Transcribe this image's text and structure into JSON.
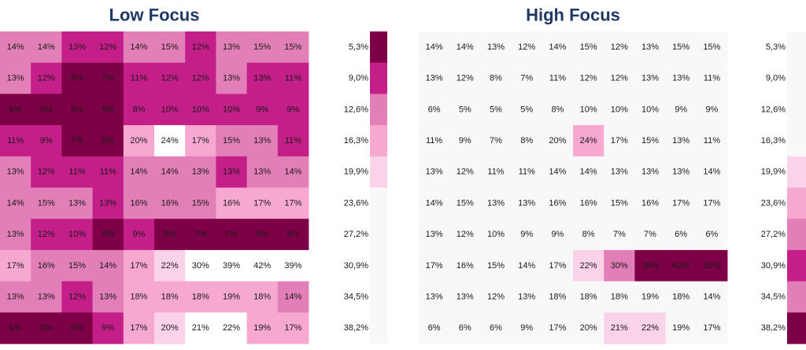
{
  "chart_data": {
    "type": "heatmap",
    "palette": [
      "#ffffff",
      "#fbd3e9",
      "#f7a8d0",
      "#e27fb8",
      "#c41e89",
      "#7d0046"
    ],
    "background": "#f8f8f8",
    "legend": {
      "labels": [
        "5,3%",
        "9,0%",
        "12,6%",
        "16,3%",
        "19,9%",
        "23,6%",
        "27,2%",
        "30,9%",
        "34,5%",
        "38,2%"
      ],
      "left_colors": [
        "#7d0046",
        "#c41e89",
        "#e27fb8",
        "#f7a8d0",
        "#fbd3e9",
        "#f8f8f8",
        "#f8f8f8",
        "#f8f8f8",
        "#f8f8f8",
        "#f8f8f8"
      ],
      "right_colors": [
        "#f8f8f8",
        "#f8f8f8",
        "#f8f8f8",
        "#f8f8f8",
        "#fbd3e9",
        "#f7a8d0",
        "#e27fb8",
        "#c41e89",
        "#e27fb8",
        "#7d0046"
      ]
    },
    "panels": [
      {
        "title": "Low Focus",
        "values": [
          [
            "14%",
            "14%",
            "13%",
            "12%",
            "14%",
            "15%",
            "12%",
            "13%",
            "15%",
            "15%"
          ],
          [
            "13%",
            "12%",
            "8%",
            "7%",
            "11%",
            "12%",
            "12%",
            "13%",
            "13%",
            "11%"
          ],
          [
            "6%",
            "5%",
            "5%",
            "5%",
            "8%",
            "10%",
            "10%",
            "10%",
            "9%",
            "9%"
          ],
          [
            "11%",
            "9%",
            "7%",
            "8%",
            "20%",
            "24%",
            "17%",
            "15%",
            "13%",
            "11%"
          ],
          [
            "13%",
            "12%",
            "11%",
            "11%",
            "14%",
            "14%",
            "13%",
            "13%",
            "13%",
            "14%"
          ],
          [
            "14%",
            "15%",
            "13%",
            "13%",
            "16%",
            "16%",
            "15%",
            "16%",
            "17%",
            "17%"
          ],
          [
            "13%",
            "12%",
            "10%",
            "9%",
            "9%",
            "8%",
            "7%",
            "7%",
            "6%",
            "6%"
          ],
          [
            "17%",
            "16%",
            "15%",
            "14%",
            "17%",
            "22%",
            "30%",
            "39%",
            "42%",
            "39%"
          ],
          [
            "13%",
            "13%",
            "12%",
            "13%",
            "18%",
            "18%",
            "18%",
            "19%",
            "18%",
            "14%"
          ],
          [
            "6%",
            "6%",
            "6%",
            "9%",
            "17%",
            "20%",
            "21%",
            "22%",
            "19%",
            "17%"
          ]
        ],
        "colors": [
          [
            "#e27fb8",
            "#e27fb8",
            "#c41e89",
            "#c41e89",
            "#e27fb8",
            "#e27fb8",
            "#c41e89",
            "#e27fb8",
            "#e27fb8",
            "#e27fb8"
          ],
          [
            "#e27fb8",
            "#c41e89",
            "#7d0046",
            "#7d0046",
            "#c41e89",
            "#c41e89",
            "#c41e89",
            "#e27fb8",
            "#c41e89",
            "#c41e89"
          ],
          [
            "#7d0046",
            "#7d0046",
            "#7d0046",
            "#7d0046",
            "#c41e89",
            "#c41e89",
            "#c41e89",
            "#c41e89",
            "#c41e89",
            "#c41e89"
          ],
          [
            "#c41e89",
            "#c41e89",
            "#7d0046",
            "#7d0046",
            "#f7a8d0",
            "#ffffff",
            "#f7a8d0",
            "#e27fb8",
            "#e27fb8",
            "#c41e89"
          ],
          [
            "#e27fb8",
            "#c41e89",
            "#c41e89",
            "#c41e89",
            "#e27fb8",
            "#e27fb8",
            "#e27fb8",
            "#c41e89",
            "#e27fb8",
            "#e27fb8"
          ],
          [
            "#e27fb8",
            "#e27fb8",
            "#e27fb8",
            "#c41e89",
            "#e27fb8",
            "#e27fb8",
            "#e27fb8",
            "#f7a8d0",
            "#f7a8d0",
            "#f7a8d0"
          ],
          [
            "#e27fb8",
            "#c41e89",
            "#c41e89",
            "#7d0046",
            "#c41e89",
            "#7d0046",
            "#7d0046",
            "#7d0046",
            "#7d0046",
            "#7d0046"
          ],
          [
            "#f7a8d0",
            "#e27fb8",
            "#e27fb8",
            "#e27fb8",
            "#f7a8d0",
            "#fbd3e9",
            "#ffffff",
            "#ffffff",
            "#ffffff",
            "#ffffff"
          ],
          [
            "#e27fb8",
            "#e27fb8",
            "#c41e89",
            "#e27fb8",
            "#f7a8d0",
            "#f7a8d0",
            "#f7a8d0",
            "#f7a8d0",
            "#f7a8d0",
            "#e27fb8"
          ],
          [
            "#7d0046",
            "#7d0046",
            "#7d0046",
            "#c41e89",
            "#f7a8d0",
            "#fbd3e9",
            "#ffffff",
            "#ffffff",
            "#f7a8d0",
            "#f7a8d0"
          ]
        ]
      },
      {
        "title": "High Focus",
        "values": [
          [
            "14%",
            "14%",
            "13%",
            "12%",
            "14%",
            "15%",
            "12%",
            "13%",
            "15%",
            "15%"
          ],
          [
            "13%",
            "12%",
            "8%",
            "7%",
            "11%",
            "12%",
            "12%",
            "13%",
            "13%",
            "11%"
          ],
          [
            "6%",
            "5%",
            "5%",
            "5%",
            "8%",
            "10%",
            "10%",
            "10%",
            "9%",
            "9%"
          ],
          [
            "11%",
            "9%",
            "7%",
            "8%",
            "20%",
            "24%",
            "17%",
            "15%",
            "13%",
            "11%"
          ],
          [
            "13%",
            "12%",
            "11%",
            "11%",
            "14%",
            "14%",
            "13%",
            "13%",
            "13%",
            "14%"
          ],
          [
            "14%",
            "15%",
            "13%",
            "13%",
            "16%",
            "16%",
            "15%",
            "16%",
            "17%",
            "17%"
          ],
          [
            "13%",
            "12%",
            "10%",
            "9%",
            "9%",
            "8%",
            "7%",
            "7%",
            "6%",
            "6%"
          ],
          [
            "17%",
            "16%",
            "15%",
            "14%",
            "17%",
            "22%",
            "30%",
            "39%",
            "42%",
            "39%"
          ],
          [
            "13%",
            "13%",
            "12%",
            "13%",
            "18%",
            "18%",
            "18%",
            "19%",
            "18%",
            "14%"
          ],
          [
            "6%",
            "6%",
            "6%",
            "9%",
            "17%",
            "20%",
            "21%",
            "22%",
            "19%",
            "17%"
          ]
        ],
        "colors": [
          [
            "#f8f8f8",
            "#f8f8f8",
            "#f8f8f8",
            "#f8f8f8",
            "#f8f8f8",
            "#f8f8f8",
            "#f8f8f8",
            "#f8f8f8",
            "#f8f8f8",
            "#f8f8f8"
          ],
          [
            "#f8f8f8",
            "#f8f8f8",
            "#f8f8f8",
            "#f8f8f8",
            "#f8f8f8",
            "#f8f8f8",
            "#f8f8f8",
            "#f8f8f8",
            "#f8f8f8",
            "#f8f8f8"
          ],
          [
            "#f8f8f8",
            "#f8f8f8",
            "#f8f8f8",
            "#f8f8f8",
            "#f8f8f8",
            "#f8f8f8",
            "#f8f8f8",
            "#f8f8f8",
            "#f8f8f8",
            "#f8f8f8"
          ],
          [
            "#f8f8f8",
            "#f8f8f8",
            "#f8f8f8",
            "#f8f8f8",
            "#f8f8f8",
            "#f7a8d0",
            "#f8f8f8",
            "#f8f8f8",
            "#f8f8f8",
            "#f8f8f8"
          ],
          [
            "#f8f8f8",
            "#f8f8f8",
            "#f8f8f8",
            "#f8f8f8",
            "#f8f8f8",
            "#f8f8f8",
            "#f8f8f8",
            "#f8f8f8",
            "#f8f8f8",
            "#f8f8f8"
          ],
          [
            "#f8f8f8",
            "#f8f8f8",
            "#f8f8f8",
            "#f8f8f8",
            "#f8f8f8",
            "#f8f8f8",
            "#f8f8f8",
            "#f8f8f8",
            "#f8f8f8",
            "#f8f8f8"
          ],
          [
            "#f8f8f8",
            "#f8f8f8",
            "#f8f8f8",
            "#f8f8f8",
            "#f8f8f8",
            "#f8f8f8",
            "#f8f8f8",
            "#f8f8f8",
            "#f8f8f8",
            "#f8f8f8"
          ],
          [
            "#f8f8f8",
            "#f8f8f8",
            "#f8f8f8",
            "#f8f8f8",
            "#f8f8f8",
            "#fbd3e9",
            "#e27fb8",
            "#7d0046",
            "#7d0046",
            "#7d0046"
          ],
          [
            "#f8f8f8",
            "#f8f8f8",
            "#f8f8f8",
            "#f8f8f8",
            "#f8f8f8",
            "#f8f8f8",
            "#f8f8f8",
            "#f8f8f8",
            "#f8f8f8",
            "#f8f8f8"
          ],
          [
            "#f8f8f8",
            "#f8f8f8",
            "#f8f8f8",
            "#f8f8f8",
            "#f8f8f8",
            "#f8f8f8",
            "#fbd3e9",
            "#fbd3e9",
            "#f8f8f8",
            "#f8f8f8"
          ]
        ]
      }
    ]
  }
}
